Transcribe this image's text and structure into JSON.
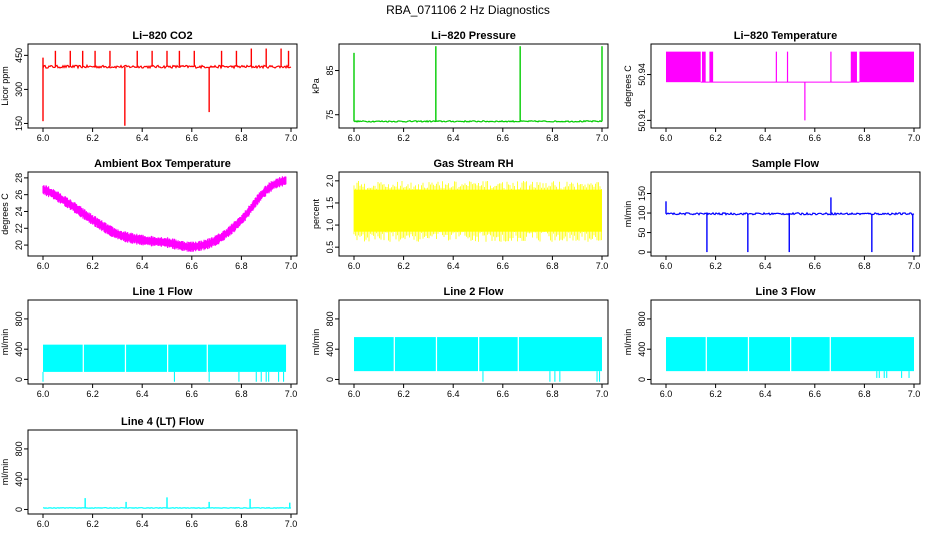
{
  "figure_title": "RBA_071106  2 Hz Diagnostics",
  "x_tick_labels": [
    "6.0",
    "6.2",
    "6.4",
    "6.6",
    "6.8",
    "7.0"
  ],
  "chart_data": [
    {
      "type": "line",
      "title": "Li−820 CO2",
      "ylabel": "Licor ppm",
      "color": "#ff0000",
      "xlim": [
        6.0,
        7.0
      ],
      "ylim": [
        130,
        500
      ],
      "yticks": [
        150,
        300,
        450
      ],
      "ytick_labels": [
        "150",
        "300",
        "450"
      ],
      "baseline": [
        [
          6.0,
          400
        ],
        [
          7.0,
          400
        ]
      ],
      "noise": 6,
      "spikes": [
        {
          "x": 6.0,
          "from": 160,
          "to": 440
        },
        {
          "x": 6.05,
          "to": 470
        },
        {
          "x": 6.11,
          "to": 470
        },
        {
          "x": 6.16,
          "to": 470
        },
        {
          "x": 6.21,
          "to": 470
        },
        {
          "x": 6.27,
          "to": 470
        },
        {
          "x": 6.33,
          "to": 140
        },
        {
          "x": 6.38,
          "to": 470
        },
        {
          "x": 6.44,
          "to": 470
        },
        {
          "x": 6.5,
          "to": 470
        },
        {
          "x": 6.55,
          "to": 470
        },
        {
          "x": 6.61,
          "to": 470
        },
        {
          "x": 6.67,
          "to": 200
        },
        {
          "x": 6.72,
          "to": 470
        },
        {
          "x": 6.78,
          "to": 470
        },
        {
          "x": 6.84,
          "to": 480
        },
        {
          "x": 6.9,
          "to": 480
        },
        {
          "x": 6.96,
          "to": 480
        },
        {
          "x": 6.99,
          "to": 470
        }
      ]
    },
    {
      "type": "line",
      "title": "Li−820 Pressure",
      "ylabel": "kPa",
      "color": "#00cc00",
      "xlim": [
        6.0,
        7.0
      ],
      "ylim": [
        72,
        91
      ],
      "yticks": [
        75,
        85
      ],
      "ytick_labels": [
        "75",
        "85"
      ],
      "baseline": [
        [
          6.0,
          73.5
        ],
        [
          7.0,
          73.5
        ]
      ],
      "noise": 0.15,
      "spikes": [
        {
          "x": 6.0,
          "to": 89
        },
        {
          "x": 6.33,
          "to": 90.5
        },
        {
          "x": 6.67,
          "to": 90.5
        },
        {
          "x": 7.0,
          "to": 90.5
        }
      ]
    },
    {
      "type": "band",
      "title": "Li−820 Temperature",
      "ylabel": "degrees C",
      "color": "#ff00ff",
      "xlim": [
        6.0,
        7.0
      ],
      "ylim": [
        50.905,
        50.96
      ],
      "yticks": [
        50.91,
        50.94
      ],
      "ytick_labels": [
        "50.91",
        "50.94"
      ],
      "band_low": 50.935,
      "band_high": 50.955,
      "segments": [
        [
          6.0,
          6.14
        ],
        [
          6.145,
          6.16
        ],
        [
          6.175,
          6.19
        ],
        [
          6.745,
          6.77
        ],
        [
          6.78,
          7.0
        ]
      ],
      "flat": {
        "y": 50.935,
        "x": [
          6.14,
          6.78
        ]
      },
      "spikes": [
        {
          "x": 6.445,
          "to": 50.955
        },
        {
          "x": 6.49,
          "to": 50.955
        },
        {
          "x": 6.56,
          "to": 50.91
        },
        {
          "x": 6.665,
          "to": 50.955
        }
      ]
    },
    {
      "type": "band",
      "title": "Ambient Box Temperature",
      "ylabel": "degrees C",
      "color": "#ff00ff",
      "xlim": [
        6.0,
        7.0
      ],
      "ylim": [
        18.7,
        28.7
      ],
      "yticks": [
        20,
        22,
        24,
        26,
        28
      ],
      "ytick_labels": [
        "20",
        "22",
        "24",
        "26",
        "28"
      ],
      "curve": [
        [
          6.0,
          26.6
        ],
        [
          6.1,
          25.0
        ],
        [
          6.2,
          23.0
        ],
        [
          6.3,
          21.3
        ],
        [
          6.4,
          20.6
        ],
        [
          6.5,
          20.3
        ],
        [
          6.6,
          19.8
        ],
        [
          6.7,
          20.6
        ],
        [
          6.8,
          23.0
        ],
        [
          6.9,
          26.5
        ],
        [
          6.98,
          27.7
        ]
      ],
      "half_width": 0.5
    },
    {
      "type": "band",
      "title": "Gas Stream RH",
      "ylabel": "percent",
      "color": "#ffff00",
      "xlim": [
        6.0,
        7.0
      ],
      "ylim": [
        0.3,
        2.2
      ],
      "yticks": [
        0.5,
        1.0,
        1.5,
        2.0
      ],
      "ytick_labels": [
        "0.5",
        "1.0",
        "1.5",
        "2.0"
      ],
      "band_low": 0.85,
      "band_high": 1.8,
      "segments": [
        [
          6.0,
          7.0
        ]
      ],
      "extremes": [
        0.62,
        2.0
      ]
    },
    {
      "type": "line",
      "title": "Sample Flow",
      "ylabel": "ml/min",
      "color": "#0000ff",
      "xlim": [
        6.0,
        7.0
      ],
      "ylim": [
        -10,
        205
      ],
      "yticks": [
        0,
        50,
        100,
        150
      ],
      "ytick_labels": [
        "0",
        "50",
        "100",
        "150"
      ],
      "baseline": [
        [
          6.0,
          98
        ],
        [
          7.0,
          98
        ]
      ],
      "noise": 2.5,
      "spikes": [
        {
          "x": 6.0,
          "to": 130
        },
        {
          "x": 6.165,
          "to": 0
        },
        {
          "x": 6.33,
          "to": 0
        },
        {
          "x": 6.497,
          "to": 0
        },
        {
          "x": 6.665,
          "to": 140
        },
        {
          "x": 6.83,
          "to": 0
        },
        {
          "x": 6.995,
          "to": 0
        }
      ]
    },
    {
      "type": "band",
      "title": "Line 1 Flow",
      "ylabel": "ml/min",
      "color": "#00ffff",
      "xlim": [
        6.0,
        7.0
      ],
      "ylim": [
        -60,
        1050
      ],
      "yticks": [
        0,
        400,
        800
      ],
      "ytick_labels": [
        "0",
        "400",
        "800"
      ],
      "band_low": 100,
      "band_high": 460,
      "segments": [
        [
          6.0,
          6.16
        ],
        [
          6.165,
          6.33
        ],
        [
          6.335,
          6.5
        ],
        [
          6.505,
          6.66
        ],
        [
          6.665,
          6.98
        ]
      ],
      "drops": [
        6.0,
        6.53,
        6.67,
        6.79,
        6.86,
        6.88,
        6.9,
        6.91,
        6.95,
        6.97
      ],
      "drop_to": -30
    },
    {
      "type": "band",
      "title": "Line 2 Flow",
      "ylabel": "ml/min",
      "color": "#00ffff",
      "xlim": [
        6.0,
        7.0
      ],
      "ylim": [
        -60,
        1050
      ],
      "yticks": [
        0,
        400,
        800
      ],
      "ytick_labels": [
        "0",
        "400",
        "800"
      ],
      "band_low": 110,
      "band_high": 560,
      "segments": [
        [
          6.0,
          6.16
        ],
        [
          6.165,
          6.33
        ],
        [
          6.335,
          6.5
        ],
        [
          6.505,
          6.66
        ],
        [
          6.665,
          7.0
        ]
      ],
      "drops": [
        6.52,
        6.79,
        6.81,
        6.83,
        6.98,
        6.99
      ],
      "drop_to": -30
    },
    {
      "type": "band",
      "title": "Line 3 Flow",
      "ylabel": "ml/min",
      "color": "#00ffff",
      "xlim": [
        6.0,
        7.0
      ],
      "ylim": [
        -60,
        1050
      ],
      "yticks": [
        0,
        400,
        800
      ],
      "ytick_labels": [
        "0",
        "400",
        "800"
      ],
      "band_low": 110,
      "band_high": 560,
      "high_after": [
        6.67,
        600
      ],
      "segments": [
        [
          6.0,
          6.16
        ],
        [
          6.165,
          6.33
        ],
        [
          6.335,
          6.5
        ],
        [
          6.505,
          6.66
        ],
        [
          6.665,
          7.0
        ]
      ],
      "drops": [
        6.85,
        6.86,
        6.88,
        6.89,
        6.95,
        6.98
      ],
      "drop_to": 20
    },
    {
      "type": "line",
      "title": "Line 4 (LT) Flow",
      "ylabel": "ml/min",
      "color": "#00ffff",
      "xlim": [
        6.0,
        7.0
      ],
      "ylim": [
        -60,
        1050
      ],
      "yticks": [
        0,
        400,
        800
      ],
      "ytick_labels": [
        "0",
        "400",
        "800"
      ],
      "baseline": [
        [
          6.0,
          20
        ],
        [
          7.0,
          20
        ]
      ],
      "noise": 4,
      "spikes": [
        {
          "x": 6.17,
          "to": 150
        },
        {
          "x": 6.335,
          "to": 100
        },
        {
          "x": 6.5,
          "to": 160
        },
        {
          "x": 6.67,
          "to": 100
        },
        {
          "x": 6.835,
          "to": 140
        },
        {
          "x": 6.995,
          "to": 90
        }
      ]
    }
  ]
}
